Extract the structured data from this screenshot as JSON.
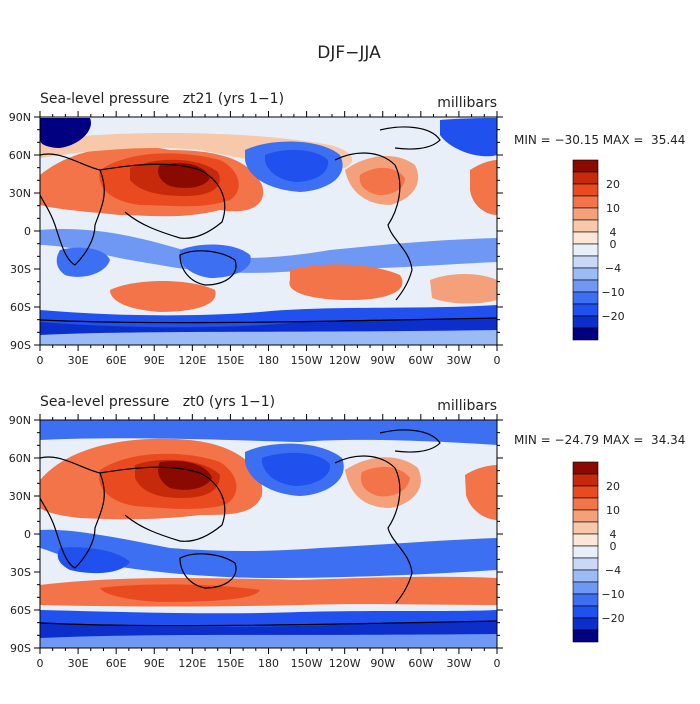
{
  "figure": {
    "title": "DJF−JJA"
  },
  "chart_data": [
    {
      "type": "heatmap",
      "title": "Sea-level pressure   zt21 (yrs 1−1)",
      "units": "millibars",
      "stats": "MIN = −30.15 MAX =  35.44",
      "x_ticks": [
        "0",
        "30E",
        "60E",
        "90E",
        "120E",
        "150E",
        "180",
        "150W",
        "120W",
        "90W",
        "60W",
        "30W",
        "0"
      ],
      "y_ticks": [
        "90N",
        "60N",
        "30N",
        "0",
        "30S",
        "60S",
        "90S"
      ],
      "xlim": [
        0,
        360
      ],
      "ylim": [
        -90,
        90
      ],
      "colorbar_labels": [
        "20",
        "10",
        "4",
        "0",
        "−4",
        "−10",
        "−20"
      ],
      "color_levels": [
        -30,
        -20,
        -15,
        -10,
        -6,
        -4,
        -2,
        0,
        2,
        4,
        6,
        10,
        15,
        20,
        30
      ],
      "colors": [
        "#000080",
        "#0c2fcc",
        "#2050ee",
        "#3d6ff2",
        "#6f97f4",
        "#9cbaf4",
        "#c8d8f6",
        "#e8eff9",
        "#fbe6d8",
        "#f7c8aa",
        "#f4a07a",
        "#f27448",
        "#ea4a1f",
        "#c62a0a",
        "#8a0a00"
      ],
      "grid": false
    },
    {
      "type": "heatmap",
      "title": "Sea-level pressure   zt0 (yrs 1−1)",
      "units": "millibars",
      "stats": "MIN = −24.79 MAX =  34.34",
      "x_ticks": [
        "0",
        "30E",
        "60E",
        "90E",
        "120E",
        "150E",
        "180",
        "150W",
        "120W",
        "90W",
        "60W",
        "30W",
        "0"
      ],
      "y_ticks": [
        "90N",
        "60N",
        "30N",
        "0",
        "30S",
        "60S",
        "90S"
      ],
      "xlim": [
        0,
        360
      ],
      "ylim": [
        -90,
        90
      ],
      "colorbar_labels": [
        "20",
        "10",
        "4",
        "0",
        "−4",
        "−10",
        "−20"
      ],
      "color_levels": [
        -30,
        -20,
        -15,
        -10,
        -6,
        -4,
        -2,
        0,
        2,
        4,
        6,
        10,
        15,
        20,
        30
      ],
      "colors": [
        "#000080",
        "#0c2fcc",
        "#2050ee",
        "#3d6ff2",
        "#6f97f4",
        "#9cbaf4",
        "#c8d8f6",
        "#e8eff9",
        "#fbe6d8",
        "#f7c8aa",
        "#f4a07a",
        "#f27448",
        "#ea4a1f",
        "#c62a0a",
        "#8a0a00"
      ],
      "grid": false
    }
  ]
}
